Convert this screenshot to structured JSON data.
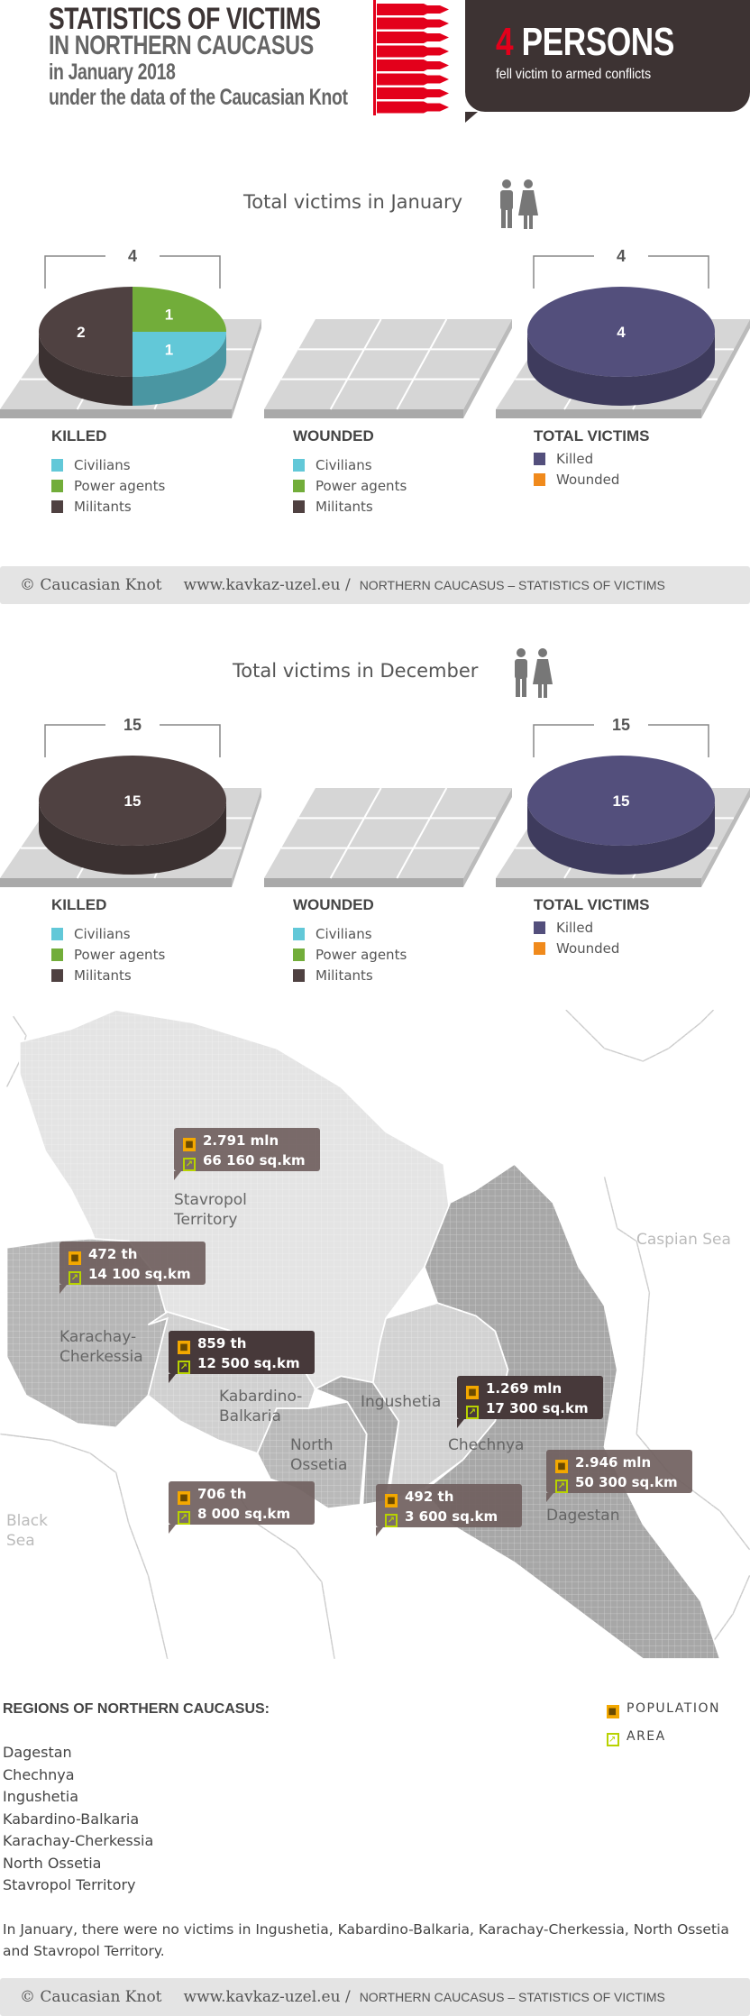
{
  "header": {
    "title_line1": "STATISTICS OF VICTIMS",
    "title_line2": "IN NORTHERN CAUCASUS",
    "title_line3": "in January 2018",
    "title_line4": "under the data of the Caucasian Knot",
    "count": "4",
    "count_label": "PERSONS",
    "subtitle": "fell victim to armed conflicts",
    "accent": "#e3001b"
  },
  "colors": {
    "civilians": "#62c8d8",
    "power_agents": "#72ad3a",
    "militants": "#4f4141",
    "killed": "#534f7c",
    "wounded": "#f08a1c"
  },
  "legends": {
    "killed": {
      "title": "KILLED",
      "items": [
        "Civilians",
        "Power agents",
        "Militants"
      ]
    },
    "wounded": {
      "title": "WOUNDED",
      "items": [
        "Civilians",
        "Power agents",
        "Militants"
      ]
    },
    "total": {
      "title": "TOTAL VICTIMS",
      "items": [
        "Killed",
        "Wounded"
      ]
    }
  },
  "chart_data": [
    {
      "type": "pie",
      "title": "Total victims in January",
      "panels": [
        {
          "name": "KILLED",
          "total": 4,
          "slices": [
            {
              "name": "Power agents",
              "value": 1
            },
            {
              "name": "Civilians",
              "value": 1
            },
            {
              "name": "Militants",
              "value": 2
            }
          ]
        },
        {
          "name": "WOUNDED",
          "total": 0,
          "slices": []
        },
        {
          "name": "TOTAL VICTIMS",
          "total": 4,
          "slices": [
            {
              "name": "Killed",
              "value": 4
            }
          ]
        }
      ]
    },
    {
      "type": "pie",
      "title": "Total victims in December",
      "panels": [
        {
          "name": "KILLED",
          "total": 15,
          "slices": [
            {
              "name": "Militants",
              "value": 15
            }
          ]
        },
        {
          "name": "WOUNDED",
          "total": 0,
          "slices": []
        },
        {
          "name": "TOTAL VICTIMS",
          "total": 15,
          "slices": [
            {
              "name": "Killed",
              "value": 15
            }
          ]
        }
      ]
    }
  ],
  "footer": {
    "copyright": "© Caucasian Knot",
    "site": "www.kavkaz-uzel.eu /",
    "caption": "NORTHERN CAUCASUS – STATISTICS OF VICTIMS"
  },
  "map": {
    "regions": [
      {
        "name": "Stavropol Territory",
        "population": "2.791 mln",
        "area": "66 160 sq.km"
      },
      {
        "name": "Karachay-Cherkessia",
        "population": "472 th",
        "area": "14 100 sq.km"
      },
      {
        "name": "Kabardino-Balkaria",
        "population": "859 th",
        "area": "12 500 sq.km"
      },
      {
        "name": "Chechnya",
        "population": "1.269 mln",
        "area": "17 300 sq.km"
      },
      {
        "name": "Dagestan",
        "population": "2.946 mln",
        "area": "50 300 sq.km"
      },
      {
        "name": "North Ossetia",
        "population": "706 th",
        "area": "8 000 sq.km"
      },
      {
        "name": "Ingushetia",
        "population": "492 th",
        "area": "3 600 sq.km"
      }
    ],
    "labels": {
      "stav1": "Stavropol",
      "stav2": "Territory",
      "kc1": "Karachay-",
      "kc2": "Cherkessia",
      "kb1": "Kabardino-",
      "kb2": "Balkaria",
      "no1": "North",
      "no2": "Ossetia",
      "ing": "Ingushetia",
      "che": "Chechnya",
      "dag": "Dagestan",
      "caspian": "Caspian Sea",
      "black1": "Black",
      "black2": "Sea"
    }
  },
  "regions_list": {
    "title": "REGIONS OF NORTHERN CAUCASUS:",
    "items": [
      "Dagestan",
      "Chechnya",
      "Ingushetia",
      "Kabardino-Balkaria",
      "Karachay-Cherkessia",
      "North Ossetia",
      "Stavropol Territory"
    ],
    "legend_population": "POPULATION",
    "legend_area": "AREA"
  },
  "note": "In January, there were no victims in Ingushetia, Kabardino-Balkaria, Karachay-Cherkessia, North Ossetia and Stavropol Territory."
}
